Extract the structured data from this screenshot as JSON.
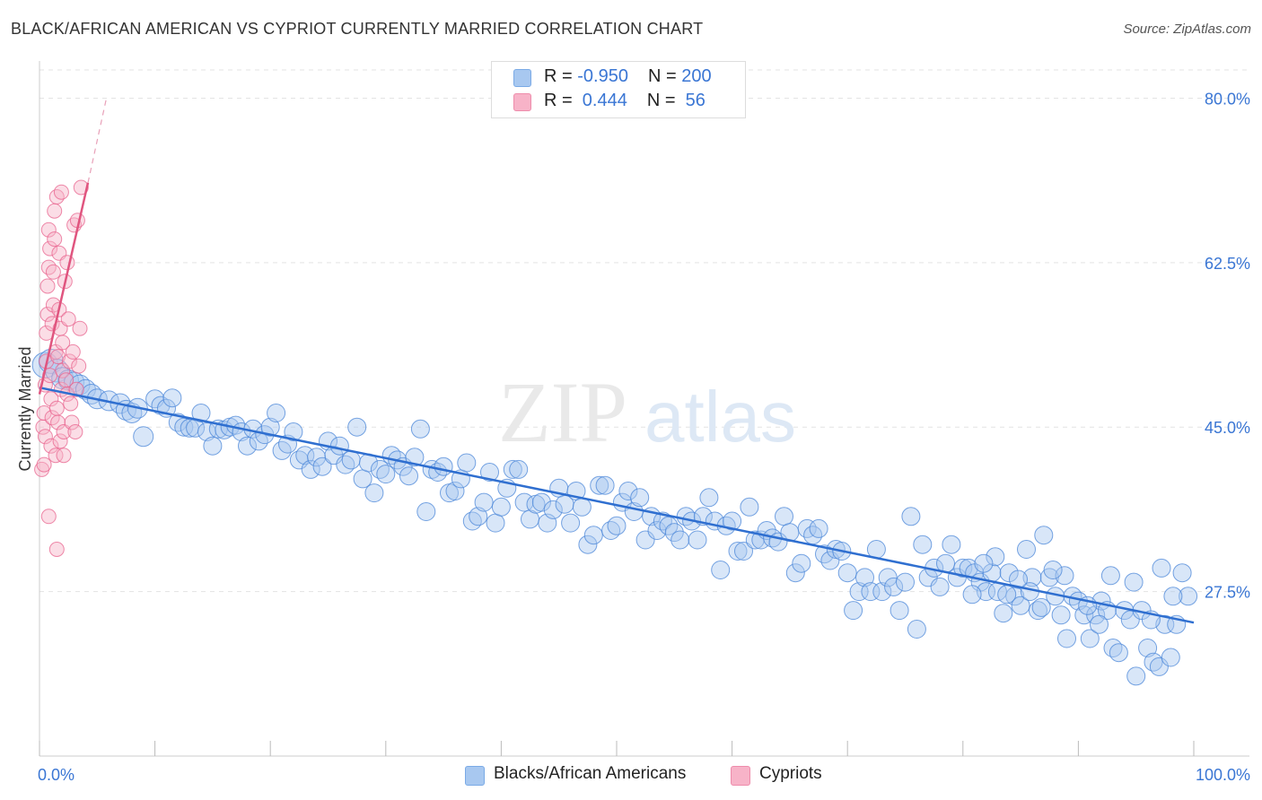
{
  "title": "BLACK/AFRICAN AMERICAN VS CYPRIOT CURRENTLY MARRIED CORRELATION CHART",
  "source": "Source: ZipAtlas.com",
  "watermark": {
    "zip": "ZIP",
    "atlas": "atlas"
  },
  "legend": {
    "rows": [
      {
        "r_label": "R = ",
        "r_value": "-0.950",
        "n_label": "N = ",
        "n_value": "200",
        "color": "#a8c8f0"
      },
      {
        "r_label": "R = ",
        "r_value": " 0.444",
        "n_label": "N = ",
        "n_value": " 56",
        "color": "#f7b3c8"
      }
    ]
  },
  "bottom_legend": [
    {
      "label": "Blacks/African Americans",
      "color": "#a8c8f0"
    },
    {
      "label": "Cypriots",
      "color": "#f7b3c8"
    }
  ],
  "chart_data": {
    "type": "scatter",
    "ylabel": "Currently Married",
    "xlabel": "",
    "xlim": [
      0,
      100
    ],
    "ylim": [
      10,
      83
    ],
    "x_tick_labels": [
      "0.0%",
      "100.0%"
    ],
    "y_ticks": [
      {
        "value": 80.0,
        "label": "80.0%"
      },
      {
        "value": 62.5,
        "label": "62.5%"
      },
      {
        "value": 45.0,
        "label": "45.0%"
      },
      {
        "value": 27.5,
        "label": "27.5%"
      }
    ],
    "grid": true,
    "series": [
      {
        "name": "Blacks/African Americans",
        "color": "#4a86d8",
        "fill": "#a8c8f0",
        "trend": {
          "x": [
            0,
            100
          ],
          "y": [
            49.2,
            24.2
          ]
        },
        "points": [
          [
            0.5,
            51.6
          ],
          [
            1.0,
            52.0
          ],
          [
            1.5,
            51.0
          ],
          [
            2.0,
            50.2
          ],
          [
            2.5,
            50.0
          ],
          [
            3.0,
            49.8
          ],
          [
            3.5,
            49.5
          ],
          [
            4.0,
            49.0
          ],
          [
            4.5,
            48.5
          ],
          [
            5.0,
            48.0
          ],
          [
            6.0,
            47.8
          ],
          [
            7.0,
            47.5
          ],
          [
            7.5,
            46.8
          ],
          [
            8.0,
            46.5
          ],
          [
            8.5,
            47.0
          ],
          [
            9.0,
            44.0
          ],
          [
            10.0,
            48.0
          ],
          [
            10.5,
            47.3
          ],
          [
            11.0,
            47.0
          ],
          [
            11.5,
            48.1
          ],
          [
            12.0,
            45.5
          ],
          [
            12.5,
            45.0
          ],
          [
            13.0,
            44.9
          ],
          [
            13.5,
            44.9
          ],
          [
            14.0,
            46.5
          ],
          [
            14.5,
            44.5
          ],
          [
            15.0,
            43.0
          ],
          [
            15.5,
            44.8
          ],
          [
            16.0,
            44.7
          ],
          [
            16.5,
            45.0
          ],
          [
            17.0,
            45.2
          ],
          [
            17.5,
            44.5
          ],
          [
            18.0,
            43.0
          ],
          [
            18.5,
            44.8
          ],
          [
            19.0,
            43.5
          ],
          [
            19.5,
            44.2
          ],
          [
            20.0,
            45.0
          ],
          [
            20.5,
            46.5
          ],
          [
            21.0,
            42.5
          ],
          [
            21.5,
            43.2
          ],
          [
            22.0,
            44.5
          ],
          [
            22.5,
            41.5
          ],
          [
            23.0,
            42.0
          ],
          [
            23.5,
            40.5
          ],
          [
            24.0,
            41.8
          ],
          [
            24.5,
            40.8
          ],
          [
            25.0,
            43.5
          ],
          [
            25.5,
            42.0
          ],
          [
            26.0,
            43.0
          ],
          [
            26.5,
            41.0
          ],
          [
            27.0,
            41.5
          ],
          [
            27.5,
            45.0
          ],
          [
            28.0,
            39.5
          ],
          [
            28.5,
            41.2
          ],
          [
            29.0,
            38.0
          ],
          [
            29.5,
            40.5
          ],
          [
            30.0,
            40.0
          ],
          [
            30.5,
            42.0
          ],
          [
            31.0,
            41.5
          ],
          [
            31.5,
            40.8
          ],
          [
            32.0,
            39.8
          ],
          [
            32.5,
            41.8
          ],
          [
            33.0,
            44.8
          ],
          [
            33.5,
            36.0
          ],
          [
            34.0,
            40.5
          ],
          [
            34.5,
            40.2
          ],
          [
            35.0,
            40.8
          ],
          [
            35.5,
            38.0
          ],
          [
            36.0,
            38.2
          ],
          [
            36.5,
            39.5
          ],
          [
            37.0,
            41.2
          ],
          [
            37.5,
            35.0
          ],
          [
            38.0,
            35.5
          ],
          [
            38.5,
            37.0
          ],
          [
            39.0,
            40.2
          ],
          [
            39.5,
            34.8
          ],
          [
            40.0,
            36.5
          ],
          [
            40.5,
            38.5
          ],
          [
            41.0,
            40.5
          ],
          [
            41.5,
            40.5
          ],
          [
            42.0,
            37.0
          ],
          [
            42.5,
            35.2
          ],
          [
            43.0,
            36.8
          ],
          [
            43.5,
            37.0
          ],
          [
            44.0,
            34.8
          ],
          [
            44.5,
            36.2
          ],
          [
            45.0,
            38.5
          ],
          [
            45.5,
            36.8
          ],
          [
            46.0,
            34.8
          ],
          [
            46.5,
            38.2
          ],
          [
            47.0,
            36.5
          ],
          [
            47.5,
            32.5
          ],
          [
            48.0,
            33.5
          ],
          [
            48.5,
            38.8
          ],
          [
            49.0,
            38.8
          ],
          [
            49.5,
            34.0
          ],
          [
            50.0,
            34.5
          ],
          [
            50.5,
            37.0
          ],
          [
            51.0,
            38.2
          ],
          [
            51.5,
            36.0
          ],
          [
            52.0,
            37.5
          ],
          [
            52.5,
            33.0
          ],
          [
            53.0,
            35.5
          ],
          [
            53.5,
            34.0
          ],
          [
            54.0,
            35.0
          ],
          [
            54.5,
            34.5
          ],
          [
            55.0,
            33.8
          ],
          [
            55.5,
            33.0
          ],
          [
            56.0,
            35.5
          ],
          [
            56.5,
            35.0
          ],
          [
            57.0,
            33.0
          ],
          [
            57.5,
            35.5
          ],
          [
            58.0,
            37.5
          ],
          [
            58.5,
            35.0
          ],
          [
            59.0,
            29.8
          ],
          [
            59.5,
            34.5
          ],
          [
            60.0,
            35.0
          ],
          [
            60.5,
            31.8
          ],
          [
            61.0,
            31.8
          ],
          [
            61.5,
            36.5
          ],
          [
            62.0,
            33.0
          ],
          [
            62.5,
            33.0
          ],
          [
            63.0,
            34.0
          ],
          [
            63.5,
            33.2
          ],
          [
            64.0,
            32.8
          ],
          [
            64.5,
            35.5
          ],
          [
            65.0,
            33.8
          ],
          [
            65.5,
            29.5
          ],
          [
            66.0,
            30.5
          ],
          [
            66.5,
            34.2
          ],
          [
            67.0,
            33.5
          ],
          [
            67.5,
            34.2
          ],
          [
            68.0,
            31.5
          ],
          [
            68.5,
            30.8
          ],
          [
            69.0,
            32.0
          ],
          [
            69.5,
            31.8
          ],
          [
            70.0,
            29.5
          ],
          [
            70.5,
            25.5
          ],
          [
            71.0,
            27.5
          ],
          [
            71.5,
            29.0
          ],
          [
            72.0,
            27.5
          ],
          [
            72.5,
            32.0
          ],
          [
            73.0,
            27.5
          ],
          [
            73.5,
            29.0
          ],
          [
            74.0,
            28.0
          ],
          [
            74.5,
            25.5
          ],
          [
            75.0,
            28.5
          ],
          [
            75.5,
            35.5
          ],
          [
            76.0,
            23.5
          ],
          [
            76.5,
            32.5
          ],
          [
            77.0,
            29.0
          ],
          [
            77.5,
            30.0
          ],
          [
            78.0,
            28.0
          ],
          [
            78.5,
            30.5
          ],
          [
            79.0,
            32.5
          ],
          [
            79.5,
            29.0
          ],
          [
            80.0,
            30.0
          ],
          [
            80.5,
            30.0
          ],
          [
            81.0,
            29.5
          ],
          [
            81.5,
            28.5
          ],
          [
            82.0,
            27.5
          ],
          [
            82.5,
            29.5
          ],
          [
            83.0,
            27.5
          ],
          [
            83.5,
            25.2
          ],
          [
            84.0,
            29.5
          ],
          [
            84.5,
            27.0
          ],
          [
            85.0,
            26.0
          ],
          [
            85.5,
            32.0
          ],
          [
            86.0,
            29.0
          ],
          [
            86.5,
            25.5
          ],
          [
            87.0,
            33.5
          ],
          [
            87.5,
            29.0
          ],
          [
            88.0,
            27.0
          ],
          [
            88.5,
            25.0
          ],
          [
            89.0,
            22.5
          ],
          [
            89.5,
            27.0
          ],
          [
            90.0,
            26.5
          ],
          [
            90.5,
            25.0
          ],
          [
            91.0,
            22.5
          ],
          [
            91.5,
            25.0
          ],
          [
            92.0,
            26.5
          ],
          [
            92.5,
            25.5
          ],
          [
            93.0,
            21.5
          ],
          [
            93.5,
            21.0
          ],
          [
            94.0,
            25.5
          ],
          [
            94.5,
            24.5
          ],
          [
            95.0,
            18.5
          ],
          [
            95.5,
            25.5
          ],
          [
            96.0,
            21.5
          ],
          [
            96.5,
            20.0
          ],
          [
            97.0,
            19.5
          ],
          [
            97.5,
            24.0
          ],
          [
            98.0,
            20.5
          ],
          [
            98.5,
            24.0
          ],
          [
            99.0,
            29.5
          ],
          [
            99.5,
            27.0
          ],
          [
            98.2,
            27.0
          ],
          [
            97.2,
            30.0
          ],
          [
            96.3,
            24.5
          ],
          [
            94.8,
            28.5
          ],
          [
            92.8,
            29.2
          ],
          [
            91.8,
            24.0
          ],
          [
            90.8,
            26.0
          ],
          [
            88.8,
            29.2
          ],
          [
            87.8,
            29.8
          ],
          [
            86.8,
            25.8
          ],
          [
            85.8,
            27.5
          ],
          [
            84.8,
            28.8
          ],
          [
            83.8,
            27.2
          ],
          [
            82.8,
            31.2
          ],
          [
            81.8,
            30.5
          ],
          [
            80.8,
            27.2
          ]
        ]
      },
      {
        "name": "Cypriots",
        "color": "#e8638e",
        "fill": "#f7b3c8",
        "trend": {
          "x": [
            0,
            4.2
          ],
          "y": [
            48.5,
            71.0
          ],
          "dash_to": [
            5.8,
            80.0
          ]
        },
        "points": [
          [
            0.2,
            40.5
          ],
          [
            0.3,
            45.0
          ],
          [
            0.4,
            46.5
          ],
          [
            0.5,
            44.0
          ],
          [
            0.5,
            49.5
          ],
          [
            0.6,
            52.0
          ],
          [
            0.6,
            55.0
          ],
          [
            0.7,
            57.0
          ],
          [
            0.7,
            60.0
          ],
          [
            0.8,
            62.0
          ],
          [
            0.8,
            66.0
          ],
          [
            0.9,
            64.0
          ],
          [
            0.9,
            50.5
          ],
          [
            1.0,
            48.0
          ],
          [
            1.0,
            43.0
          ],
          [
            1.1,
            46.0
          ],
          [
            1.1,
            56.0
          ],
          [
            1.2,
            58.0
          ],
          [
            1.2,
            61.5
          ],
          [
            1.3,
            65.0
          ],
          [
            1.3,
            68.0
          ],
          [
            1.4,
            53.0
          ],
          [
            1.4,
            42.0
          ],
          [
            1.5,
            69.5
          ],
          [
            1.5,
            47.0
          ],
          [
            1.6,
            52.5
          ],
          [
            1.6,
            45.5
          ],
          [
            1.7,
            63.5
          ],
          [
            1.7,
            57.5
          ],
          [
            1.8,
            55.5
          ],
          [
            1.8,
            43.5
          ],
          [
            1.9,
            70.0
          ],
          [
            1.9,
            49.0
          ],
          [
            2.0,
            54.0
          ],
          [
            2.0,
            51.0
          ],
          [
            2.1,
            44.5
          ],
          [
            2.1,
            42.0
          ],
          [
            2.2,
            60.5
          ],
          [
            2.3,
            50.0
          ],
          [
            2.4,
            48.5
          ],
          [
            2.5,
            56.5
          ],
          [
            2.6,
            52.0
          ],
          [
            2.7,
            47.5
          ],
          [
            2.8,
            45.5
          ],
          [
            2.9,
            53.0
          ],
          [
            3.0,
            66.5
          ],
          [
            3.1,
            44.5
          ],
          [
            3.2,
            49.0
          ],
          [
            3.3,
            67.0
          ],
          [
            3.4,
            51.5
          ],
          [
            3.5,
            55.5
          ],
          [
            3.6,
            70.5
          ],
          [
            1.5,
            32.0
          ],
          [
            0.8,
            35.5
          ],
          [
            0.4,
            41.0
          ],
          [
            2.4,
            62.5
          ]
        ]
      }
    ]
  }
}
